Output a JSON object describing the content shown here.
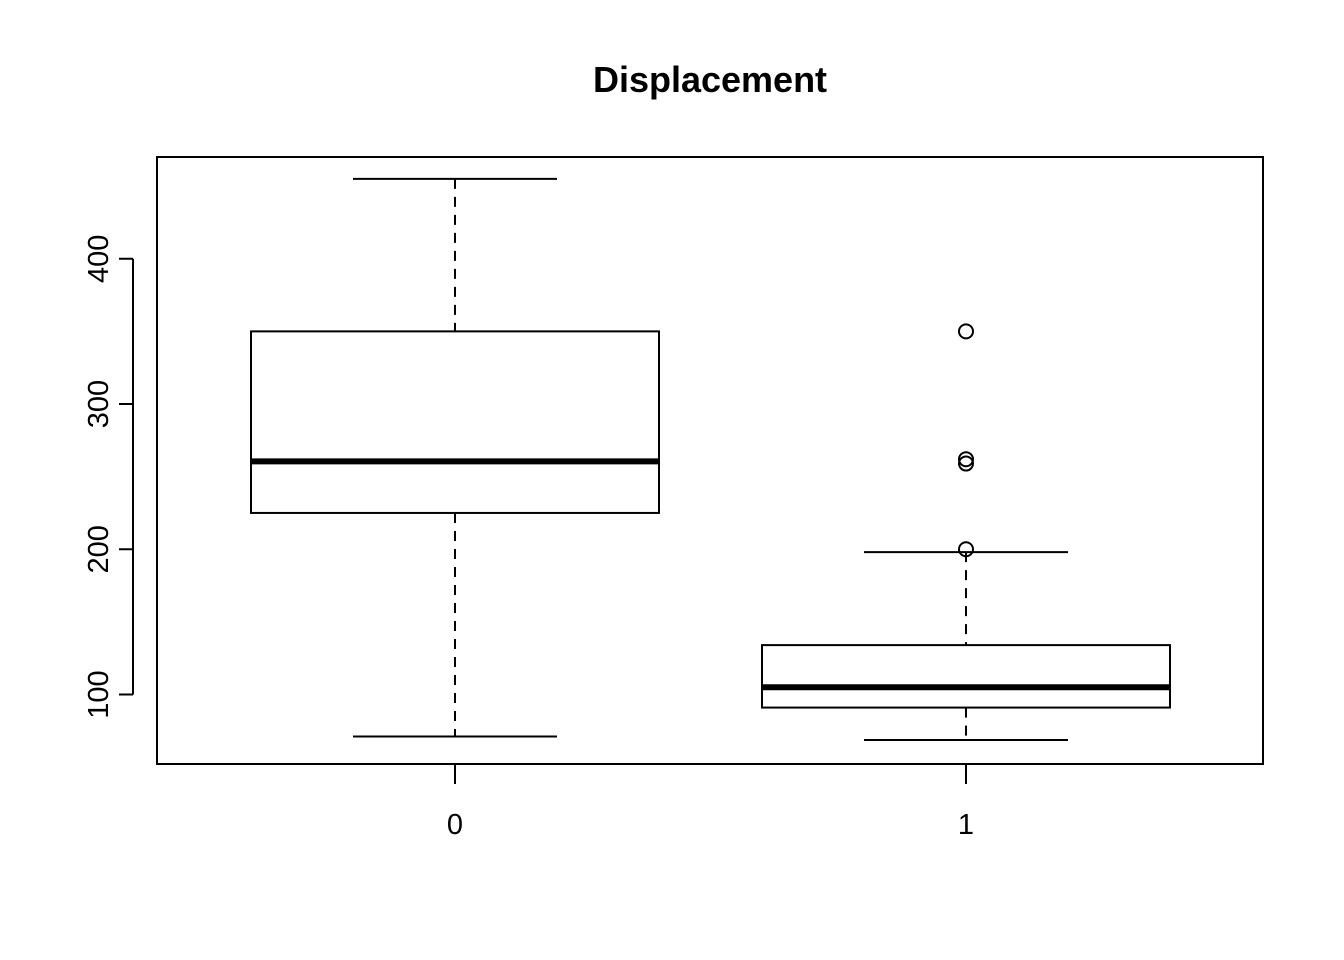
{
  "chart_data": {
    "type": "box",
    "title": "Displacement",
    "xlabel": "",
    "ylabel": "",
    "categories": [
      "0",
      "1"
    ],
    "y_ticks": [
      100,
      200,
      300,
      400
    ],
    "y_tick_labels": [
      "100",
      "200",
      "300",
      "400"
    ],
    "ylim": [
      52,
      470
    ],
    "grid": false,
    "boxes": [
      {
        "category": "0",
        "whisker_low": 71.1,
        "q1": 225,
        "median": 260.5,
        "q3": 350,
        "whisker_high": 455,
        "outliers": []
      },
      {
        "category": "1",
        "whisker_low": 68.7,
        "q1": 91,
        "median": 105,
        "q3": 134,
        "whisker_high": 198,
        "outliers": [
          350,
          262,
          259,
          200
        ]
      }
    ]
  }
}
